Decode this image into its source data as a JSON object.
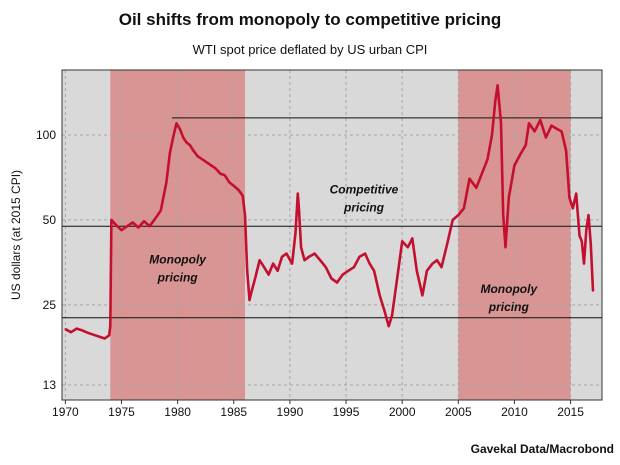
{
  "chart_data": {
    "type": "line",
    "title": "Oil shifts from monopoly to competitive pricing",
    "subtitle": "WTI spot price deflated by US urban CPI",
    "source": "Gavekal Data/Macrobond",
    "ylabel": "US dollars (at 2015 CPI)",
    "yscale": "log",
    "xlim": [
      1969.7,
      2017.8
    ],
    "ylim": [
      11.5,
      170
    ],
    "xticks": [
      "1970",
      "1975",
      "1980",
      "1985",
      "1990",
      "1995",
      "2000",
      "2005",
      "2010",
      "2015"
    ],
    "yticks": [
      13,
      25,
      50,
      100
    ],
    "grid": true,
    "shaded_periods": [
      {
        "start": 1974.0,
        "end": 1986.0
      },
      {
        "start": 2005.0,
        "end": 2015.0
      }
    ],
    "reference_lines": [
      {
        "from": 1979.5,
        "to": 2018.0,
        "value": 115
      },
      {
        "from": 1969.7,
        "to": 2018.0,
        "value": 47.5
      },
      {
        "from": 1969.7,
        "to": 2018.0,
        "value": 22.5
      }
    ],
    "annotations": [
      {
        "lines": [
          "Monopoly",
          "pricing"
        ],
        "x": 1980.0,
        "y": 35
      },
      {
        "lines": [
          "Competitive",
          "pricing"
        ],
        "x": 1996.6,
        "y": 62
      },
      {
        "lines": [
          "Monopoly",
          "pricing"
        ],
        "x": 2009.5,
        "y": 27.5
      }
    ],
    "series": [
      {
        "x": [
          1970.0,
          1970.5,
          1971.0,
          1971.5,
          1972.0,
          1972.5,
          1973.0,
          1973.5,
          1973.9,
          1974.0,
          1974.1,
          1974.5,
          1975.0,
          1975.5,
          1976.0,
          1976.5,
          1977.0,
          1977.5,
          1978.0,
          1978.5,
          1979.0,
          1979.3,
          1979.6,
          1979.9,
          1980.2,
          1980.5,
          1980.8,
          1981.1,
          1981.4,
          1981.8,
          1982.2,
          1982.6,
          1983.0,
          1983.4,
          1983.8,
          1984.2,
          1984.6,
          1985.0,
          1985.4,
          1985.8,
          1986.0,
          1986.2,
          1986.4,
          1986.6,
          1986.9,
          1987.3,
          1987.7,
          1988.1,
          1988.5,
          1988.9,
          1989.3,
          1989.7,
          1990.2,
          1990.5,
          1990.7,
          1990.8,
          1991.0,
          1991.3,
          1991.7,
          1992.2,
          1992.7,
          1993.2,
          1993.7,
          1994.2,
          1994.7,
          1995.2,
          1995.7,
          1996.2,
          1996.7,
          1997.1,
          1997.5,
          1998.0,
          1998.4,
          1998.8,
          1999.1,
          1999.5,
          2000.0,
          2000.5,
          2000.9,
          2001.3,
          2001.8,
          2002.2,
          2002.7,
          2003.1,
          2003.5,
          2004.0,
          2004.5,
          2005.0,
          2005.5,
          2006.0,
          2006.6,
          2007.1,
          2007.6,
          2008.0,
          2008.3,
          2008.5,
          2008.8,
          2009.0,
          2009.2,
          2009.5,
          2010.0,
          2010.5,
          2011.0,
          2011.3,
          2011.8,
          2012.3,
          2012.8,
          2013.3,
          2013.8,
          2014.2,
          2014.6,
          2014.9,
          2015.2,
          2015.5,
          2015.8,
          2016.0,
          2016.2,
          2016.4,
          2016.6,
          2016.8,
          2017.0
        ],
        "values": [
          20.5,
          20.0,
          20.6,
          20.3,
          19.9,
          19.6,
          19.3,
          19.0,
          19.5,
          21.0,
          50.0,
          48.0,
          46.0,
          47.5,
          49.0,
          47.0,
          49.5,
          47.5,
          50.5,
          54.0,
          68,
          86,
          98,
          110,
          105,
          98,
          94,
          92,
          88,
          84,
          82,
          80,
          78,
          76,
          73,
          72,
          68,
          66,
          64,
          61,
          52,
          33,
          26,
          28,
          31,
          36,
          34,
          32,
          35,
          33,
          37,
          38,
          35,
          45,
          62,
          55,
          40,
          36,
          37,
          38,
          36,
          34,
          31,
          30,
          32,
          33,
          34,
          37,
          38,
          35,
          33,
          27,
          24,
          21,
          23,
          30,
          42,
          40,
          43,
          33,
          27,
          33,
          35,
          36,
          34,
          41,
          50,
          52,
          55,
          70,
          65,
          73,
          82,
          100,
          132,
          150,
          110,
          52,
          40,
          60,
          78,
          85,
          92,
          110,
          103,
          113,
          98,
          108,
          105,
          103,
          88,
          60,
          55,
          62,
          44,
          42,
          35,
          46,
          52,
          41,
          28
        ]
      }
    ]
  }
}
